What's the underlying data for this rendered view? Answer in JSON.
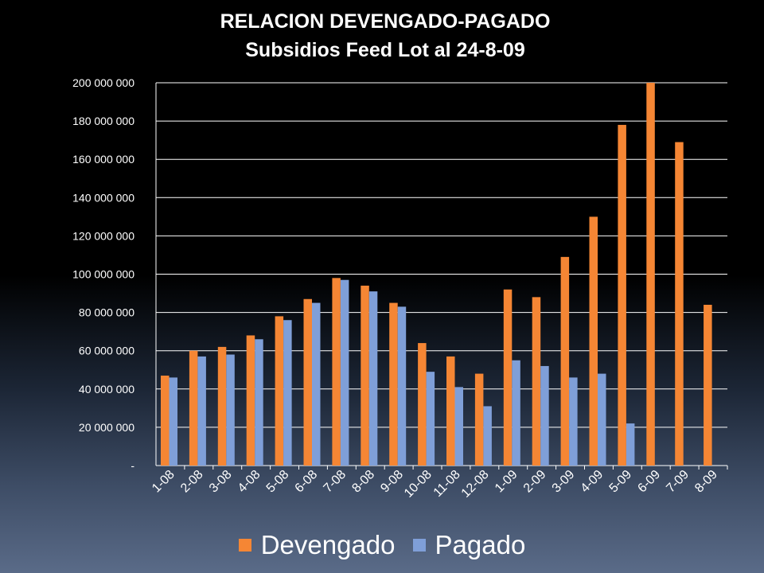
{
  "chart_data": {
    "type": "bar",
    "title": "RELACION DEVENGADO-PAGADO",
    "subtitle": "Subsidios Feed Lot al 24-8-09",
    "categories": [
      "1-08",
      "2-08",
      "3-08",
      "4-08",
      "5-08",
      "6-08",
      "7-08",
      "8-08",
      "9-08",
      "10-08",
      "11-08",
      "12-08",
      "1-09",
      "2-09",
      "3-09",
      "4-09",
      "5-09",
      "6-09",
      "7-09",
      "8-09"
    ],
    "series": [
      {
        "name": "Devengado",
        "color": "#F58634",
        "values": [
          47000000,
          60000000,
          62000000,
          68000000,
          78000000,
          87000000,
          98000000,
          94000000,
          85000000,
          64000000,
          57000000,
          48000000,
          92000000,
          88000000,
          109000000,
          130000000,
          178000000,
          200000000,
          169000000,
          84000000
        ]
      },
      {
        "name": "Pagado",
        "color": "#7F9FD8",
        "values": [
          46000000,
          57000000,
          58000000,
          66000000,
          76000000,
          85000000,
          97000000,
          91000000,
          83000000,
          49000000,
          41000000,
          31000000,
          55000000,
          52000000,
          46000000,
          48000000,
          22000000,
          null,
          null,
          null
        ]
      }
    ],
    "ylim": [
      0,
      200000000
    ],
    "yticks": [
      0,
      20000000,
      40000000,
      60000000,
      80000000,
      100000000,
      120000000,
      140000000,
      160000000,
      180000000,
      200000000
    ],
    "ytick_labels": [
      "-",
      "20 000 000",
      "40 000 000",
      "60 000 000",
      "80 000 000",
      "100 000 000",
      "120 000 000",
      "140 000 000",
      "160 000 000",
      "180 000 000",
      "200 000 000"
    ],
    "grid": true,
    "legend_position": "bottom"
  }
}
